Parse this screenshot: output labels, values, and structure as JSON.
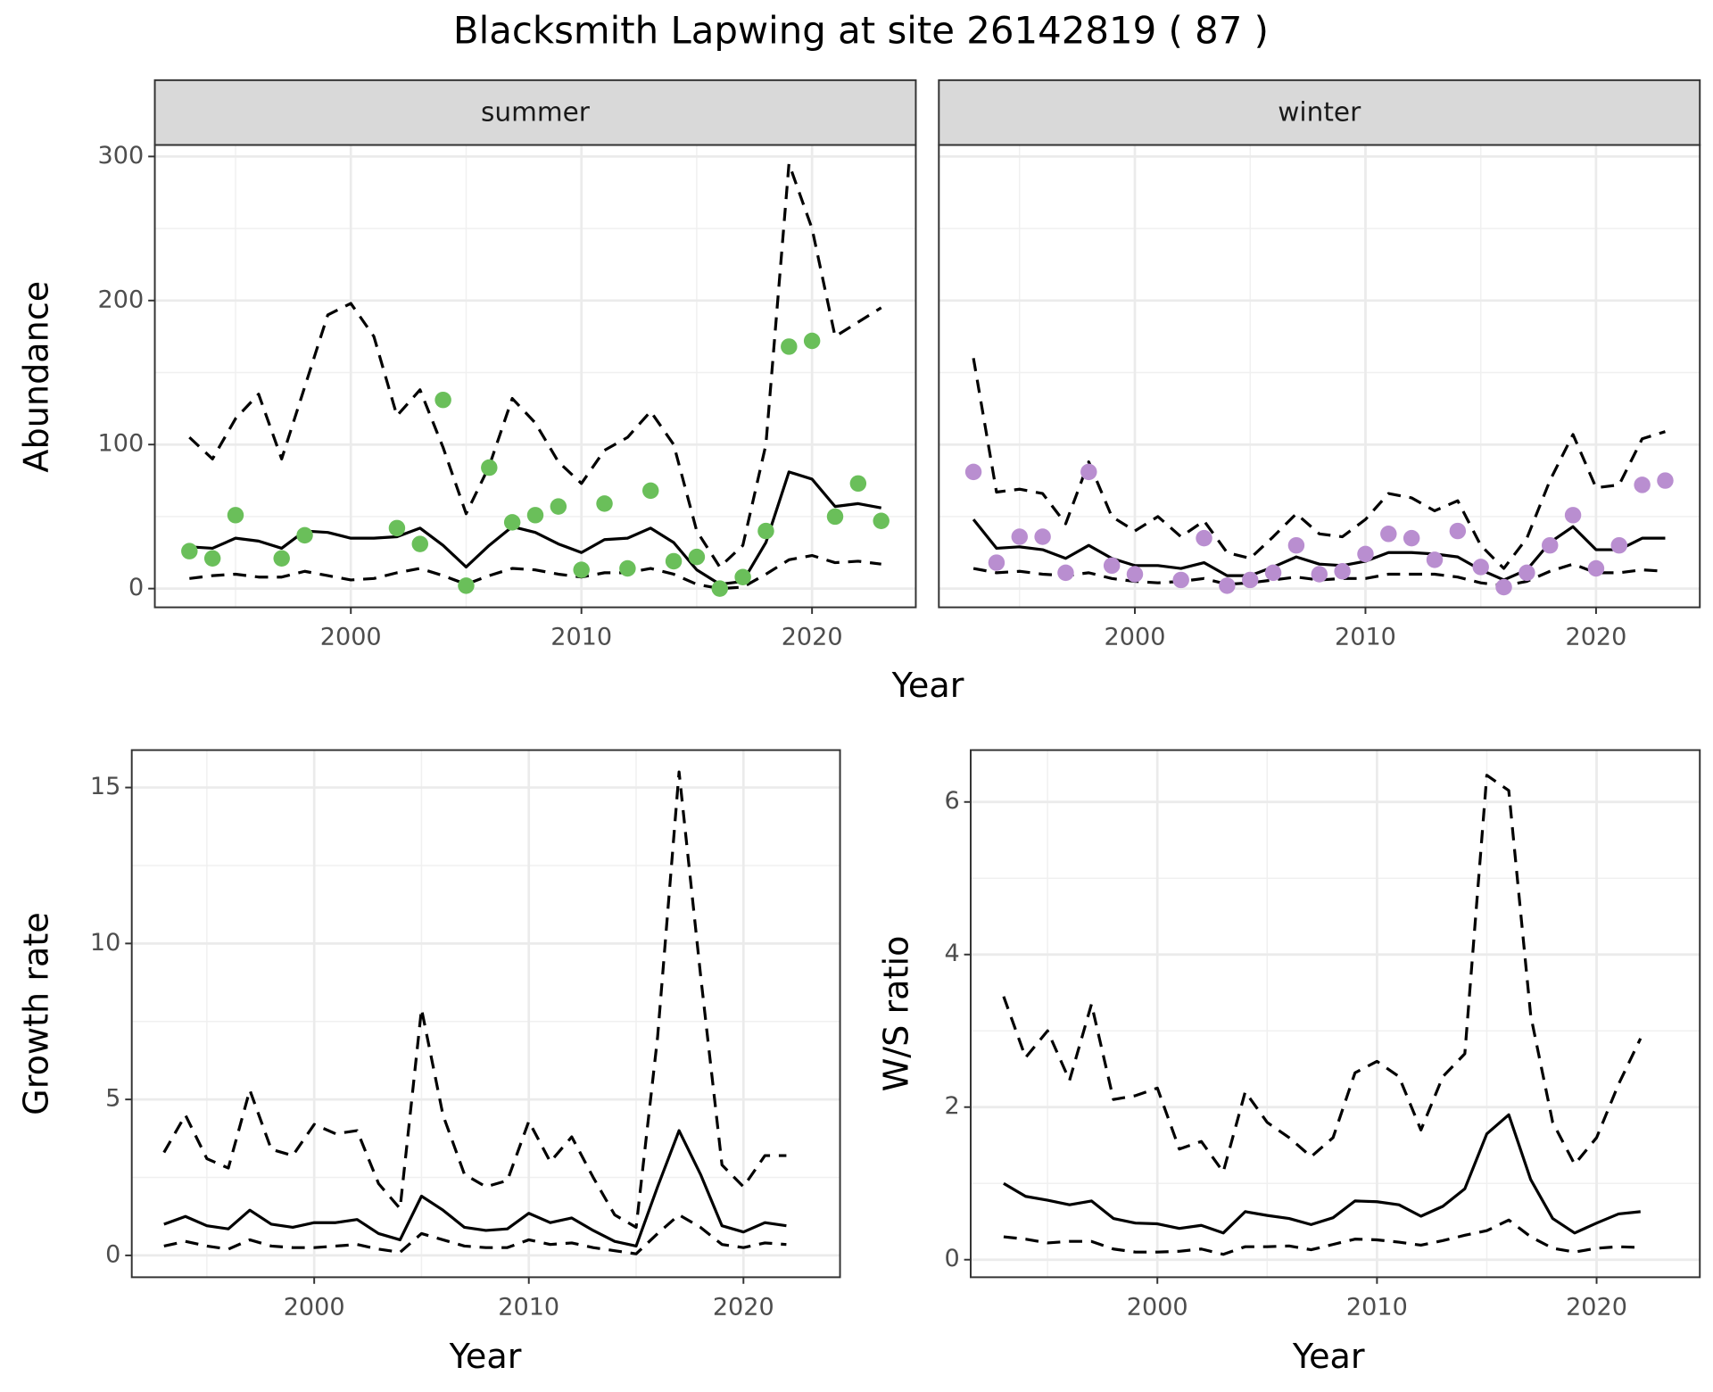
{
  "title": "Blacksmith Lapwing at site 26142819 ( 87 )",
  "chart_data": [
    {
      "type": "line",
      "strip": "summer",
      "xlabel": "Year",
      "ylabel": "Abundance",
      "x": [
        1993,
        1994,
        1995,
        1996,
        1997,
        1998,
        1999,
        2000,
        2001,
        2002,
        2003,
        2004,
        2005,
        2006,
        2007,
        2008,
        2009,
        2010,
        2011,
        2012,
        2013,
        2014,
        2015,
        2016,
        2017,
        2018,
        2019,
        2020,
        2021,
        2022,
        2023
      ],
      "xlim": [
        1991.5,
        2024.5
      ],
      "xticks": [
        2000,
        2010,
        2020
      ],
      "minor_xticks": [
        1995,
        2005,
        2015
      ],
      "ylim": [
        -13,
        308
      ],
      "yticks": [
        0,
        100,
        200,
        300
      ],
      "minor_yticks": [
        50,
        150,
        250
      ],
      "grid": true,
      "series": [
        {
          "style": "dashed",
          "color": "#000000",
          "values": [
            105,
            90,
            118,
            135,
            90,
            140,
            190,
            198,
            175,
            120,
            138,
            98,
            52,
            85,
            132,
            115,
            88,
            73,
            96,
            105,
            123,
            100,
            40,
            15,
            30,
            100,
            295,
            250,
            175,
            185,
            195
          ]
        },
        {
          "style": "solid",
          "color": "#000000",
          "values": [
            29,
            28,
            35,
            33,
            28,
            40,
            39,
            35,
            35,
            36,
            42,
            30,
            15,
            30,
            43,
            39,
            31,
            25,
            34,
            35,
            42,
            32,
            13,
            3,
            5,
            32,
            81,
            76,
            57,
            59,
            56
          ]
        },
        {
          "style": "dashed",
          "color": "#000000",
          "values": [
            7,
            9,
            10,
            8,
            8,
            12,
            9,
            6,
            7,
            11,
            14,
            9,
            3,
            9,
            14,
            13,
            10,
            8,
            11,
            11,
            14,
            10,
            3,
            0,
            1,
            10,
            20,
            23,
            18,
            19,
            17
          ]
        },
        {
          "style": "points",
          "color": "#6abf5a",
          "values": [
            26,
            21,
            51,
            null,
            21,
            37,
            null,
            null,
            null,
            42,
            31,
            131,
            2,
            84,
            46,
            51,
            57,
            13,
            59,
            14,
            68,
            19,
            22,
            0,
            8,
            40,
            168,
            172,
            50,
            73,
            47
          ]
        }
      ]
    },
    {
      "type": "line",
      "strip": "winter",
      "sharey": true,
      "x": [
        1993,
        1994,
        1995,
        1996,
        1997,
        1998,
        1999,
        2000,
        2001,
        2002,
        2003,
        2004,
        2005,
        2006,
        2007,
        2008,
        2009,
        2010,
        2011,
        2012,
        2013,
        2014,
        2015,
        2016,
        2017,
        2018,
        2019,
        2020,
        2021,
        2022,
        2023
      ],
      "xlim": [
        1991.5,
        2024.5
      ],
      "xticks": [
        2000,
        2010,
        2020
      ],
      "minor_xticks": [
        1995,
        2005,
        2015
      ],
      "grid": true,
      "series": [
        {
          "style": "dashed",
          "color": "#000000",
          "values": [
            160,
            67,
            69,
            66,
            45,
            88,
            50,
            40,
            50,
            36,
            47,
            25,
            21,
            36,
            52,
            38,
            36,
            48,
            66,
            63,
            54,
            61,
            30,
            14,
            35,
            75,
            107,
            70,
            72,
            104,
            109
          ]
        },
        {
          "style": "solid",
          "color": "#000000",
          "values": [
            48,
            28,
            29,
            27,
            21,
            30,
            21,
            16,
            16,
            14,
            18,
            9,
            9,
            15,
            22,
            17,
            16,
            19,
            25,
            25,
            24,
            22,
            13,
            6,
            13,
            32,
            43,
            27,
            27,
            35,
            35
          ]
        },
        {
          "style": "dashed",
          "color": "#000000",
          "values": [
            14,
            11,
            12,
            10,
            9,
            11,
            7,
            5,
            4,
            5,
            7,
            3,
            4,
            6,
            8,
            6,
            7,
            7,
            10,
            10,
            10,
            8,
            4,
            2,
            5,
            12,
            17,
            11,
            11,
            13,
            12
          ]
        },
        {
          "style": "points",
          "color": "#b98ed0",
          "values": [
            81,
            18,
            36,
            36,
            11,
            81,
            16,
            10,
            null,
            6,
            35,
            2,
            6,
            11,
            30,
            10,
            12,
            24,
            38,
            35,
            20,
            40,
            15,
            1,
            11,
            30,
            51,
            14,
            30,
            72,
            75
          ]
        }
      ]
    },
    {
      "type": "line",
      "xlabel": "Year",
      "ylabel": "Growth rate",
      "x": [
        1993,
        1994,
        1995,
        1996,
        1997,
        1998,
        1999,
        2000,
        2001,
        2002,
        2003,
        2004,
        2005,
        2006,
        2007,
        2008,
        2009,
        2010,
        2011,
        2012,
        2013,
        2014,
        2015,
        2016,
        2017,
        2018,
        2019,
        2020,
        2021,
        2022
      ],
      "xlim": [
        1991.5,
        2024.5
      ],
      "xticks": [
        2000,
        2010,
        2020
      ],
      "minor_xticks": [
        1995,
        2005,
        2015
      ],
      "ylim": [
        -0.7,
        16.2
      ],
      "yticks": [
        0,
        5,
        10,
        15
      ],
      "minor_yticks": [
        2.5,
        7.5,
        12.5
      ],
      "grid": true,
      "series": [
        {
          "style": "dashed",
          "color": "#000000",
          "values": [
            3.3,
            4.5,
            3.1,
            2.8,
            5.3,
            3.4,
            3.2,
            4.2,
            3.9,
            4.0,
            2.3,
            1.5,
            7.9,
            4.5,
            2.6,
            2.2,
            2.4,
            4.3,
            3.0,
            3.8,
            2.5,
            1.3,
            0.9,
            7.0,
            15.5,
            9.0,
            2.9,
            2.2,
            3.2,
            3.2
          ]
        },
        {
          "style": "solid",
          "color": "#000000",
          "values": [
            1.0,
            1.25,
            0.95,
            0.85,
            1.45,
            1.0,
            0.9,
            1.05,
            1.05,
            1.15,
            0.7,
            0.5,
            1.9,
            1.45,
            0.9,
            0.8,
            0.85,
            1.35,
            1.05,
            1.2,
            0.8,
            0.45,
            0.3,
            2.2,
            4.0,
            2.6,
            0.95,
            0.75,
            1.05,
            0.95
          ]
        },
        {
          "style": "dashed",
          "color": "#000000",
          "values": [
            0.3,
            0.45,
            0.3,
            0.2,
            0.5,
            0.3,
            0.25,
            0.25,
            0.3,
            0.35,
            0.2,
            0.1,
            0.7,
            0.5,
            0.3,
            0.25,
            0.25,
            0.5,
            0.35,
            0.4,
            0.25,
            0.15,
            0.05,
            0.7,
            1.3,
            0.9,
            0.35,
            0.25,
            0.4,
            0.35
          ]
        }
      ]
    },
    {
      "type": "line",
      "xlabel": "Year",
      "ylabel": "W/S ratio",
      "x": [
        1993,
        1994,
        1995,
        1996,
        1997,
        1998,
        1999,
        2000,
        2001,
        2002,
        2003,
        2004,
        2005,
        2006,
        2007,
        2008,
        2009,
        2010,
        2011,
        2012,
        2013,
        2014,
        2015,
        2016,
        2017,
        2018,
        2019,
        2020,
        2021,
        2022
      ],
      "xlim": [
        1991.5,
        2024.7
      ],
      "xticks": [
        2000,
        2010,
        2020
      ],
      "minor_xticks": [
        1995,
        2005,
        2015
      ],
      "ylim": [
        -0.23,
        6.68
      ],
      "yticks": [
        0,
        2,
        4,
        6
      ],
      "minor_yticks": [
        1,
        3,
        5
      ],
      "grid": true,
      "series": [
        {
          "style": "dashed",
          "color": "#000000",
          "values": [
            3.45,
            2.65,
            3.0,
            2.35,
            3.35,
            2.1,
            2.15,
            2.25,
            1.45,
            1.55,
            1.15,
            2.2,
            1.8,
            1.6,
            1.35,
            1.6,
            2.45,
            2.6,
            2.4,
            1.7,
            2.4,
            2.7,
            6.35,
            6.15,
            3.2,
            1.8,
            1.25,
            1.6,
            2.3,
            2.9
          ]
        },
        {
          "style": "solid",
          "color": "#000000",
          "values": [
            1.0,
            0.83,
            0.78,
            0.72,
            0.77,
            0.54,
            0.48,
            0.47,
            0.41,
            0.45,
            0.35,
            0.63,
            0.58,
            0.54,
            0.46,
            0.55,
            0.77,
            0.76,
            0.72,
            0.57,
            0.7,
            0.93,
            1.65,
            1.9,
            1.05,
            0.54,
            0.35,
            0.48,
            0.6,
            0.63
          ]
        },
        {
          "style": "dashed",
          "color": "#000000",
          "values": [
            0.3,
            0.27,
            0.22,
            0.24,
            0.24,
            0.14,
            0.1,
            0.1,
            0.11,
            0.14,
            0.07,
            0.17,
            0.17,
            0.18,
            0.13,
            0.2,
            0.27,
            0.26,
            0.23,
            0.19,
            0.25,
            0.32,
            0.38,
            0.52,
            0.3,
            0.15,
            0.1,
            0.15,
            0.17,
            0.16
          ]
        }
      ]
    }
  ]
}
